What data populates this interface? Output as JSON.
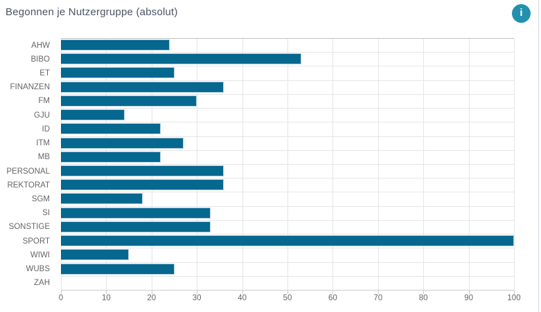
{
  "header": {
    "title": "Begonnen je Nutzergruppe (absolut)"
  },
  "icons": {
    "info": "i"
  },
  "colors": {
    "bar_fill": "#06678f",
    "bar_border": "#a9cbdb",
    "gridline": "#e6e6e6",
    "plot_top_border": "#c2c2c2",
    "axis_line": "#c9cdd3",
    "label_text": "#666666",
    "title_text": "#4a5464",
    "info_icon_bg": "#2191ad"
  },
  "chart_data": {
    "type": "bar",
    "orientation": "horizontal",
    "title": "Begonnen je Nutzergruppe (absolut)",
    "categories": [
      "AHW",
      "BIBO",
      "ET",
      "FINANZEN",
      "FM",
      "GJU",
      "ID",
      "ITM",
      "MB",
      "PERSONAL",
      "REKTORAT",
      "SGM",
      "SI",
      "SONSTIGE",
      "SPORT",
      "WIWI",
      "WUBS",
      "ZAH"
    ],
    "values": [
      24,
      53,
      25,
      36,
      30,
      14,
      22,
      27,
      22,
      36,
      36,
      18,
      33,
      33,
      100,
      15,
      25,
      0
    ],
    "xlabel": "",
    "ylabel": "",
    "xlim": [
      0,
      100
    ],
    "xticks": [
      0,
      10,
      20,
      30,
      40,
      50,
      60,
      70,
      80,
      90,
      100
    ],
    "grid": true,
    "legend": false
  }
}
